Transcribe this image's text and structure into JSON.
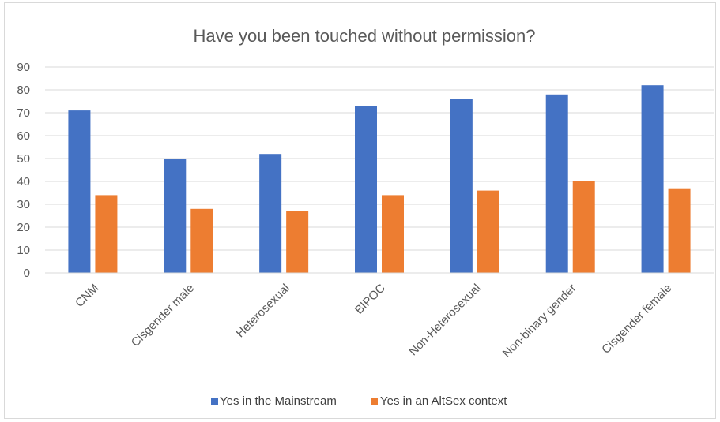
{
  "chart_data": {
    "type": "bar",
    "title": "Have you been touched without permission?",
    "xlabel": "",
    "ylabel": "",
    "categories": [
      "CNM",
      "Cisgender male",
      "Heterosexual",
      "BIPOC",
      "Non-Heterosexual",
      "Non-binary gender",
      "Cisgender female"
    ],
    "series": [
      {
        "name": "Yes in the Mainstream",
        "color": "#4472c4",
        "values": [
          71,
          50,
          52,
          73,
          76,
          78,
          82
        ]
      },
      {
        "name": "Yes in an AltSex context",
        "color": "#ed7d31",
        "values": [
          34,
          28,
          27,
          34,
          36,
          40,
          37
        ]
      }
    ],
    "ylim": [
      0,
      90
    ],
    "yticks": [
      0,
      10,
      20,
      30,
      40,
      50,
      60,
      70,
      80,
      90
    ],
    "grid": true,
    "legend_position": "bottom"
  }
}
